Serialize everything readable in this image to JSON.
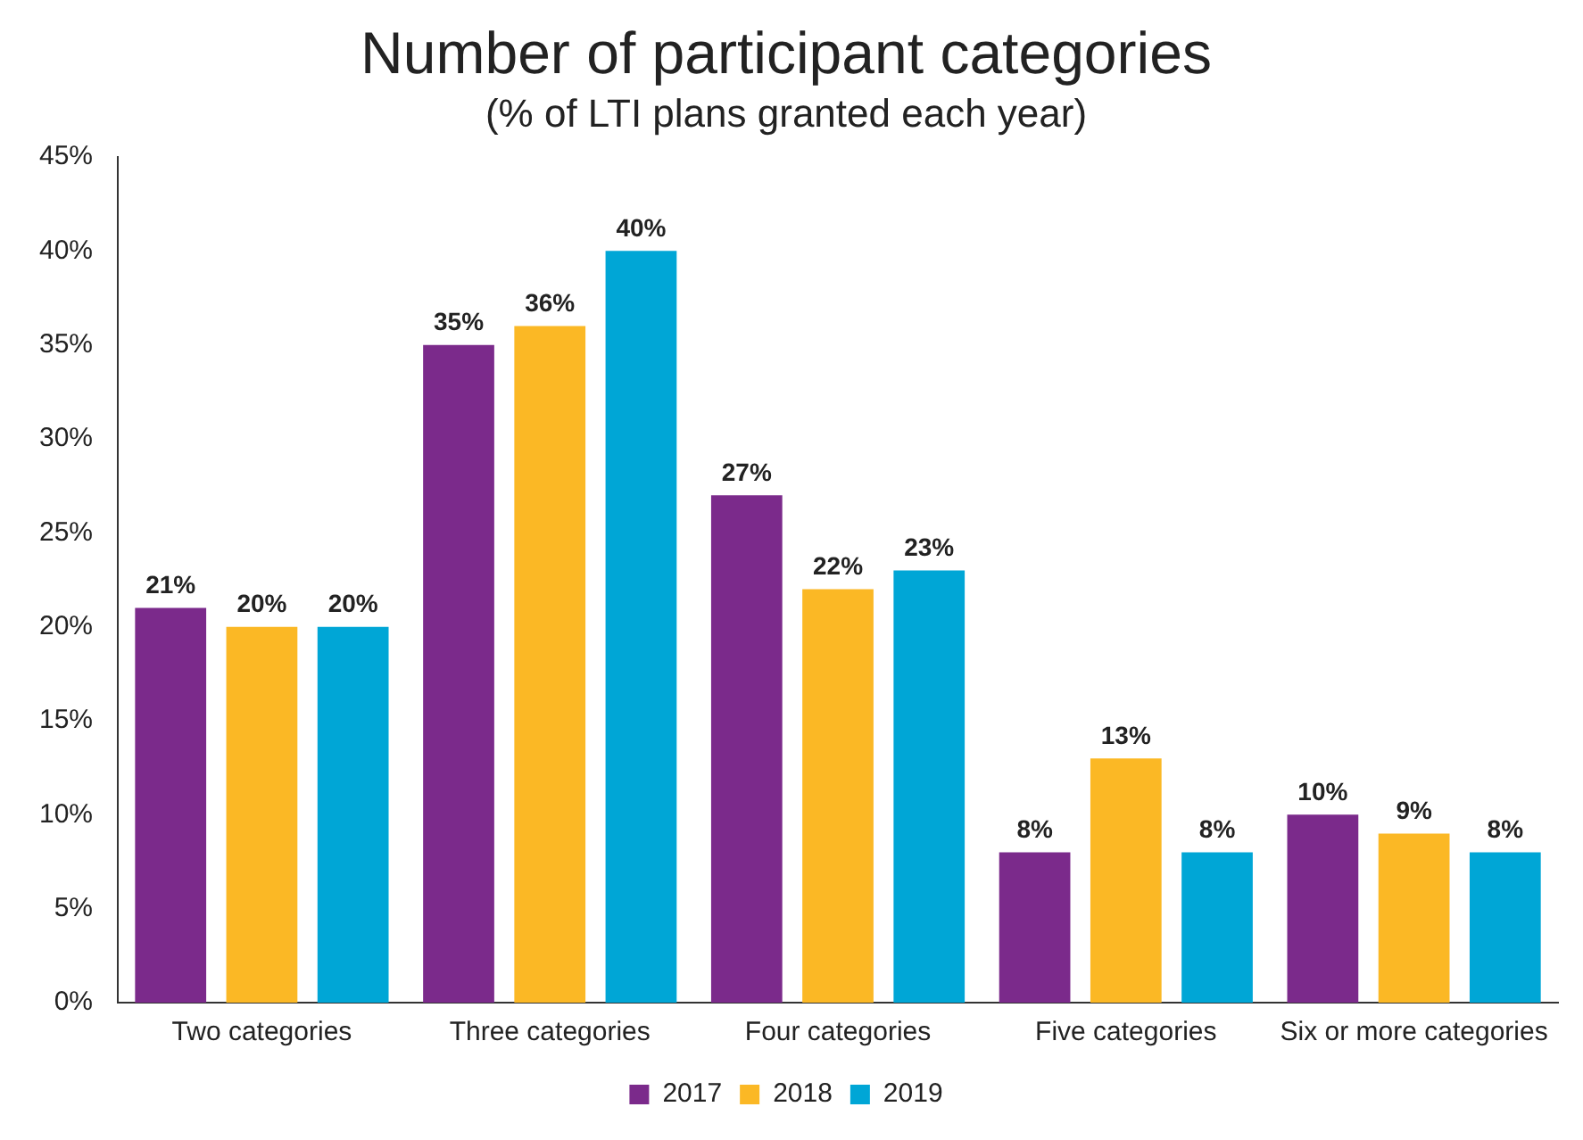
{
  "chart_data": {
    "type": "bar",
    "title": "Number of participant categories",
    "subtitle": "(% of LTI plans granted each year)",
    "categories": [
      "Two categories",
      "Three categories",
      "Four categories",
      "Five categories",
      "Six or more categories"
    ],
    "series": [
      {
        "name": "2017",
        "color": "#7b2a8b",
        "values": [
          21,
          35,
          27,
          8,
          10
        ],
        "value_labels": [
          "21%",
          "35%",
          "27%",
          "8%",
          "10%"
        ]
      },
      {
        "name": "2018",
        "color": "#fbb825",
        "values": [
          20,
          36,
          22,
          13,
          9
        ],
        "value_labels": [
          "20%",
          "36%",
          "22%",
          "13%",
          "9%"
        ]
      },
      {
        "name": "2019",
        "color": "#00a6d6",
        "values": [
          20,
          40,
          23,
          8,
          8
        ],
        "value_labels": [
          "20%",
          "40%",
          "23%",
          "8%",
          "8%"
        ]
      }
    ],
    "ylim": [
      0,
      45
    ],
    "yticks": [
      {
        "value": 0,
        "label": "0%"
      },
      {
        "value": 5,
        "label": "5%"
      },
      {
        "value": 10,
        "label": "10%"
      },
      {
        "value": 15,
        "label": "15%"
      },
      {
        "value": 20,
        "label": "20%"
      },
      {
        "value": 25,
        "label": "25%"
      },
      {
        "value": 30,
        "label": "30%"
      },
      {
        "value": 35,
        "label": "35%"
      },
      {
        "value": 40,
        "label": "40%"
      },
      {
        "value": 45,
        "label": "45%"
      }
    ],
    "grid": false,
    "legend": "bottom"
  }
}
